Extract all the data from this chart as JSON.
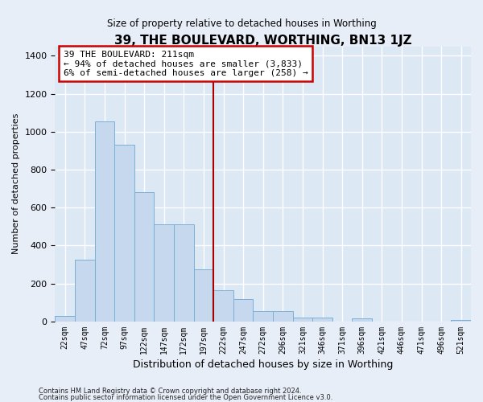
{
  "title": "39, THE BOULEVARD, WORTHING, BN13 1JZ",
  "subtitle": "Size of property relative to detached houses in Worthing",
  "xlabel": "Distribution of detached houses by size in Worthing",
  "ylabel": "Number of detached properties",
  "bar_color": "#c5d8ee",
  "bar_edge_color": "#7aafd4",
  "background_color": "#dde8f5",
  "fig_background_color": "#e8eef8",
  "grid_color": "#ffffff",
  "annotation_text": "39 THE BOULEVARD: 211sqm\n← 94% of detached houses are smaller (3,833)\n6% of semi-detached houses are larger (258) →",
  "annotation_box_color": "#ffffff",
  "annotation_border_color": "#cc0000",
  "vline_color": "#aa0000",
  "vline_x": 8.0,
  "footnote1": "Contains HM Land Registry data © Crown copyright and database right 2024.",
  "footnote2": "Contains public sector information licensed under the Open Government Licence v3.0.",
  "categories": [
    "22sqm",
    "47sqm",
    "72sqm",
    "97sqm",
    "122sqm",
    "147sqm",
    "172sqm",
    "197sqm",
    "222sqm",
    "247sqm",
    "272sqm",
    "296sqm",
    "321sqm",
    "346sqm",
    "371sqm",
    "396sqm",
    "421sqm",
    "446sqm",
    "471sqm",
    "496sqm",
    "521sqm"
  ],
  "values": [
    30,
    325,
    1055,
    930,
    680,
    510,
    510,
    275,
    165,
    120,
    55,
    55,
    20,
    20,
    0,
    18,
    0,
    0,
    0,
    0,
    10
  ],
  "ylim": [
    0,
    1450
  ],
  "yticks": [
    0,
    200,
    400,
    600,
    800,
    1000,
    1200,
    1400
  ]
}
